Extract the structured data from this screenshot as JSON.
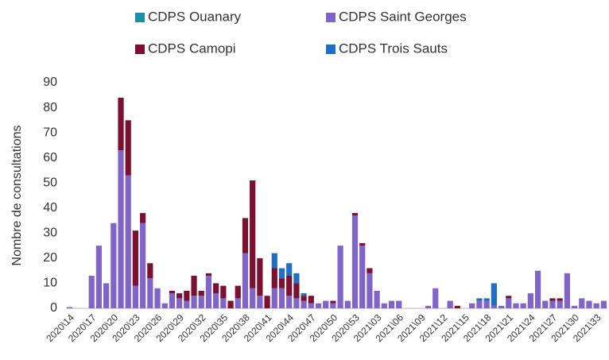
{
  "chart_data": {
    "type": "stacked_bar",
    "y_label": "Nombre de consultations",
    "categories": [
      "2020\\14",
      null,
      null,
      "2020\\17",
      null,
      null,
      "2020\\20",
      null,
      null,
      "2020\\23",
      null,
      null,
      "2020\\26",
      null,
      null,
      "2020\\29",
      null,
      null,
      "2020\\32",
      null,
      null,
      "2020\\35",
      null,
      null,
      "2020\\38",
      null,
      null,
      "2020\\41",
      null,
      null,
      "2020\\44",
      null,
      null,
      "2020\\47",
      null,
      null,
      "2020\\50",
      null,
      null,
      "2020\\53",
      null,
      null,
      "2021\\03",
      null,
      null,
      "2021\\06",
      null,
      null,
      "2021\\09",
      null,
      null,
      "2021\\12",
      null,
      null,
      "2021\\15",
      null,
      null,
      "2021\\18",
      null,
      null,
      "2021\\21",
      null,
      null,
      "2021\\24",
      null,
      null,
      "2021\\27",
      null,
      null,
      "2021\\30",
      null,
      null,
      "2021\\33",
      null
    ],
    "series": [
      {
        "name": "CDPS Saint Georges",
        "color": "#8064c8",
        "values": [
          0.5,
          0,
          0,
          13,
          25,
          10,
          34,
          63,
          53,
          9,
          34,
          12,
          8,
          2,
          6,
          4,
          3,
          5,
          5,
          13,
          6,
          4,
          0,
          4,
          22,
          8,
          5,
          0,
          8,
          8,
          5,
          4,
          3,
          2,
          2,
          3,
          2,
          25,
          3,
          37,
          25,
          14,
          7,
          2,
          3,
          3,
          0,
          0,
          0,
          1,
          8,
          0,
          3,
          0,
          0,
          2,
          3,
          3,
          1,
          1,
          4,
          2,
          2,
          6,
          15,
          3,
          3,
          3,
          14,
          1,
          4,
          3,
          2,
          3
        ]
      },
      {
        "name": "CDPS Camopi",
        "color": "#7b1030",
        "values": [
          0,
          0,
          0,
          0,
          0,
          0,
          0,
          21,
          22,
          22,
          4,
          6,
          0,
          0,
          1,
          2,
          4,
          8,
          2,
          1,
          4,
          5,
          3,
          5,
          14,
          43,
          15,
          5,
          8,
          4,
          8,
          6,
          2,
          3,
          0,
          0,
          1,
          0,
          0,
          1,
          1,
          2,
          0,
          0,
          0,
          0,
          0,
          0,
          0,
          0,
          0,
          0,
          0,
          1,
          0,
          0,
          0,
          0,
          0,
          0,
          1,
          0,
          0,
          0,
          0,
          0,
          1,
          1,
          0,
          0,
          0,
          0,
          0,
          0
        ]
      },
      {
        "name": "CDPS Trois Sauts",
        "color": "#1f6fc4",
        "values": [
          0,
          0,
          0,
          0,
          0,
          0,
          0,
          0,
          0,
          0,
          0,
          0,
          0,
          0,
          0,
          0,
          0,
          0,
          0,
          0,
          0,
          0,
          0,
          0,
          0,
          0,
          0,
          0,
          6,
          4,
          5,
          4,
          1,
          0,
          0,
          0,
          0,
          0,
          0,
          0,
          0,
          0,
          0,
          0,
          0,
          0,
          0,
          0,
          0,
          0,
          0,
          0,
          0,
          0,
          0,
          0,
          1,
          1,
          9,
          0,
          0,
          0,
          0,
          0,
          0,
          0,
          0,
          0,
          0,
          0,
          0,
          0,
          0,
          0
        ]
      },
      {
        "name": "CDPS Ouanary",
        "color": "#2090a8",
        "values": [
          0,
          0,
          0,
          0,
          0,
          0,
          0,
          0,
          0,
          0,
          0,
          0,
          0,
          0,
          0,
          0,
          0,
          0,
          0,
          0,
          0,
          0,
          0,
          0,
          0,
          0,
          0,
          0,
          0,
          0,
          0,
          0,
          0,
          0,
          0,
          0,
          0,
          0,
          0,
          0,
          0,
          0,
          0,
          0,
          0,
          0,
          0,
          0,
          0,
          0,
          0,
          0,
          0,
          0,
          0,
          0,
          0,
          0,
          0,
          0,
          0,
          0,
          0,
          0,
          0,
          0,
          0,
          0,
          0,
          0,
          0,
          0,
          0,
          0
        ]
      }
    ],
    "ylim": [
      0,
      90
    ],
    "yticks": [
      0,
      10,
      20,
      30,
      40,
      50,
      60,
      70,
      80,
      90
    ]
  }
}
